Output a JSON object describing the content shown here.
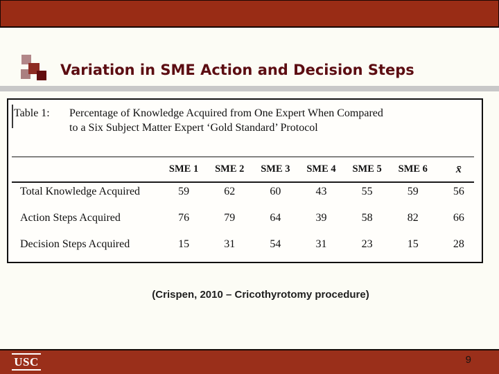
{
  "slide": {
    "title": "Variation in SME Action and Decision Steps",
    "citation": "(Crispen, 2010 – Cricothyrotomy procedure)",
    "page_number": "9",
    "footer_logo": "USC"
  },
  "table_figure": {
    "caption_label": "Table 1:",
    "caption_line1": "Percentage of Knowledge Acquired from One Expert When Compared",
    "caption_line2": "to a Six Subject Matter Expert ‘Gold Standard’ Protocol",
    "column_headers": [
      "SME 1",
      "SME 2",
      "SME 3",
      "SME 4",
      "SME 5",
      "SME 6",
      "x̄"
    ],
    "rows": [
      {
        "label": "Total Knowledge Acquired",
        "values": [
          "59",
          "62",
          "60",
          "43",
          "55",
          "59",
          "56"
        ]
      },
      {
        "label": "Action Steps Acquired",
        "values": [
          "76",
          "79",
          "64",
          "39",
          "58",
          "82",
          "66"
        ]
      },
      {
        "label": "Decision Steps Acquired",
        "values": [
          "15",
          "31",
          "54",
          "31",
          "23",
          "15",
          "28"
        ]
      }
    ]
  },
  "colors": {
    "banner_red": "#992c15",
    "footer_red": "#9a2f1a",
    "title_maroon": "#5c0d12",
    "divider_gray": "#c8c8c8",
    "bullet_squares": [
      "#b28789",
      "#8e2c23",
      "#aa7f80",
      "#620c0e"
    ]
  }
}
